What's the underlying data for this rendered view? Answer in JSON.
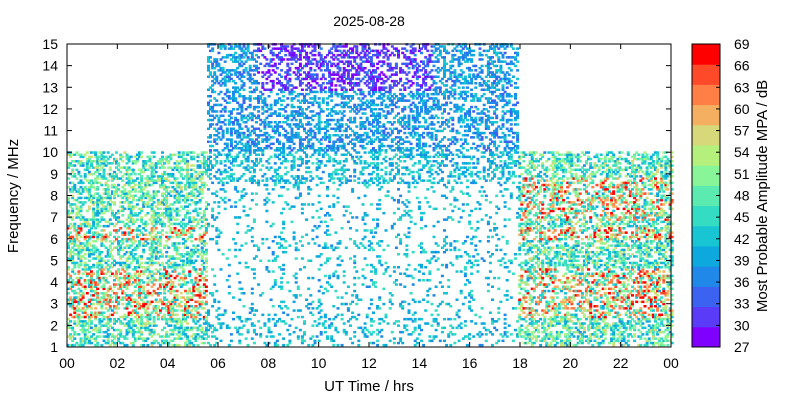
{
  "chart_data": {
    "type": "heatmap",
    "title": "2025-08-28",
    "xlabel": "UT Time / hrs",
    "ylabel": "Frequency / MHz",
    "colorbar_label": "Most Probable Amplitude MPA / dB",
    "xlim": [
      0,
      24
    ],
    "ylim": [
      1,
      15
    ],
    "x_ticks": [
      "00",
      "02",
      "04",
      "06",
      "08",
      "10",
      "12",
      "14",
      "16",
      "18",
      "20",
      "22",
      "00"
    ],
    "y_ticks": [
      "1",
      "2",
      "3",
      "4",
      "5",
      "6",
      "7",
      "8",
      "9",
      "10",
      "11",
      "12",
      "13",
      "14",
      "15"
    ],
    "colorbar_range": [
      27,
      69
    ],
    "colorbar_ticks": [
      "27",
      "30",
      "33",
      "36",
      "39",
      "42",
      "45",
      "48",
      "51",
      "54",
      "57",
      "60",
      "63",
      "66",
      "69"
    ],
    "colorscale": [
      "#7f00ff",
      "#5a3bf7",
      "#3b62f0",
      "#2088e8",
      "#0da8dd",
      "#18c5d3",
      "#34dcc4",
      "#5bebb0",
      "#87f598",
      "#b5f07c",
      "#d7d87a",
      "#f4b060",
      "#ff7f46",
      "#ff4a2a",
      "#ff0000"
    ],
    "coverage": [
      {
        "time_start": 0,
        "time_end": 5.5,
        "freq_max": 10
      },
      {
        "time_start": 5.5,
        "time_end": 17.9,
        "freq_max": 15
      },
      {
        "time_start": 17.9,
        "time_end": 24,
        "freq_max": 10
      }
    ],
    "notes": "Scattered points of MPA (dB) per time/frequency bin; red bands near 2.5-4.5 MHz and 6-8 MHz outside 05:30-18:00 UT; violet 13-15 MHz around 08:00-14:00 UT."
  }
}
